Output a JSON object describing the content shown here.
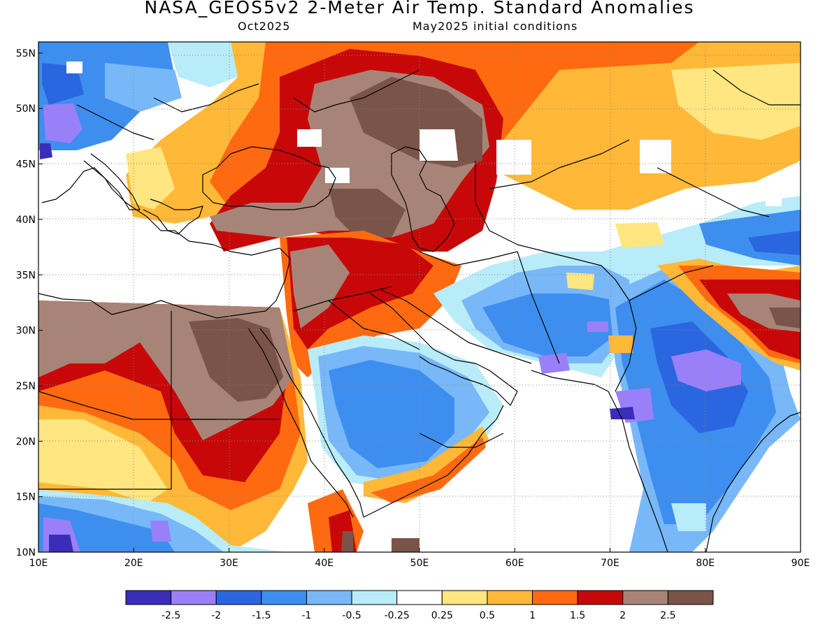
{
  "title": "NASA_GEOS5v2 2-Meter Air Temp. Standard Anomalies",
  "subtitle_left": "Oct2025",
  "subtitle_right": "May2025 initial conditions",
  "map": {
    "lon_range": [
      10,
      90
    ],
    "lat_range": [
      10,
      56
    ],
    "x_ticks": [
      {
        "value": 10,
        "label": "10E"
      },
      {
        "value": 20,
        "label": "20E"
      },
      {
        "value": 30,
        "label": "30E"
      },
      {
        "value": 40,
        "label": "40E"
      },
      {
        "value": 50,
        "label": "50E"
      },
      {
        "value": 60,
        "label": "60E"
      },
      {
        "value": 70,
        "label": "70E"
      },
      {
        "value": 80,
        "label": "80E"
      },
      {
        "value": 90,
        "label": "90E"
      }
    ],
    "y_ticks": [
      {
        "value": 55,
        "label": "55N"
      },
      {
        "value": 50,
        "label": "50N"
      },
      {
        "value": 45,
        "label": "45N"
      },
      {
        "value": 40,
        "label": "40N"
      },
      {
        "value": 35,
        "label": "35N"
      },
      {
        "value": 30,
        "label": "30N"
      },
      {
        "value": 25,
        "label": "25N"
      },
      {
        "value": 20,
        "label": "20N"
      },
      {
        "value": 15,
        "label": "15N"
      },
      {
        "value": 10,
        "label": "10N"
      }
    ]
  },
  "colorbar": {
    "colors": [
      "#3a2db8",
      "#9a80f8",
      "#2a66e0",
      "#3e8ef0",
      "#78b8f8",
      "#b8ecf8",
      "#ffffff",
      "#ffe680",
      "#ffb838",
      "#ff6a10",
      "#c80808",
      "#a88478",
      "#7a5448"
    ],
    "labels": [
      "-2.5",
      "-2",
      "-1.5",
      "-1",
      "-0.5",
      "-0.25",
      "0.25",
      "0.5",
      "1",
      "1.5",
      "2",
      "2.5"
    ]
  }
}
